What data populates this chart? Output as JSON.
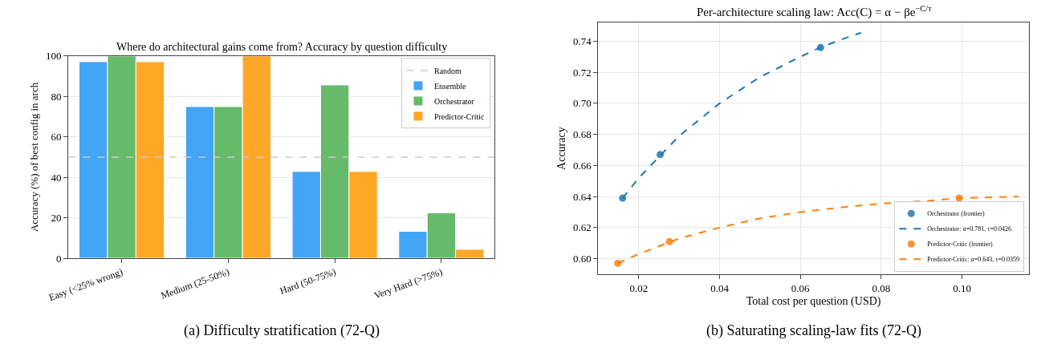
{
  "chart_data": [
    {
      "type": "bar",
      "title": "Where do architectural gains come from? Accuracy by question difficulty",
      "ylabel": "Accuracy (%) of best config in arch",
      "categories": [
        "Easy (<25% wrong)",
        "Medium (25-50%)",
        "Hard (50-75%)",
        "Very Hard (>75%)"
      ],
      "series": [
        {
          "name": "Ensemble",
          "color": "#42a5f5",
          "values": [
            97.2,
            75,
            42.9,
            13.3
          ]
        },
        {
          "name": "Orchestrator",
          "color": "#66bb6a",
          "values": [
            100,
            75,
            85.7,
            22.5
          ]
        },
        {
          "name": "Predictor-Critic",
          "color": "#ffa726",
          "values": [
            97.2,
            100,
            42.9,
            4.4
          ]
        }
      ],
      "ref_lines": [
        {
          "axis": "y",
          "value": 50,
          "label": "Random",
          "color": "#cccccc",
          "line_style": "dashed"
        }
      ],
      "ylim": [
        0,
        100
      ],
      "yticks": [
        0,
        20,
        40,
        60,
        80,
        100
      ],
      "grid": "y",
      "legend": "top right",
      "annotations": [
        "(a) Difficulty stratification (72-Q)"
      ]
    },
    {
      "type": "scatter",
      "title": "Per-architecture scaling law: Acc(C) = α − βe$^{−C/τ}$",
      "xlabel": "Total cost per question (USD)",
      "ylabel": "Accuracy",
      "series": [
        {
          "name": "Orchestrator (frontier)",
          "type": "scatter",
          "marker": "circle",
          "color": "#1f77b4",
          "x": [
            0.016,
            0.0253,
            0.065
          ],
          "values": [
            0.639,
            0.667,
            0.736
          ]
        },
        {
          "name": "Orchestrator: α=0.781, τ=0.0426",
          "type": "line",
          "marker": "none",
          "color": "#1f77b4",
          "line_style": "dashed",
          "x": [
            0.016,
            0.02,
            0.03,
            0.04,
            0.05,
            0.06,
            0.065,
            0.07,
            0.075
          ],
          "values": [
            0.639,
            0.652,
            0.679,
            0.7,
            0.717,
            0.73,
            0.736,
            0.741,
            0.7455
          ]
        },
        {
          "name": "Predictor-Critic (frontier)",
          "type": "scatter",
          "marker": "circle",
          "color": "#ff7f0e",
          "x": [
            0.0148,
            0.0276,
            0.0993
          ],
          "values": [
            0.597,
            0.611,
            0.639
          ]
        },
        {
          "name": "Predictor-Critic: α=0.643, τ=0.0359",
          "type": "line",
          "marker": "none",
          "color": "#ff7f0e",
          "line_style": "dashed",
          "x": [
            0.0148,
            0.02,
            0.03,
            0.04,
            0.05,
            0.06,
            0.07,
            0.08,
            0.09,
            0.1,
            0.114
          ],
          "values": [
            0.597,
            0.603,
            0.613,
            0.62,
            0.626,
            0.63,
            0.633,
            0.6355,
            0.637,
            0.639,
            0.64
          ]
        }
      ],
      "xlim": [
        0.01,
        0.1165
      ],
      "xticks": [
        0.02,
        0.04,
        0.06,
        0.08,
        {
          "value": 0.1,
          "label": "0.10"
        }
      ],
      "ylim": [
        0.59,
        0.752
      ],
      "yticks": [
        {
          "value": 0.6,
          "label": "0.60"
        },
        0.62,
        0.64,
        0.66,
        0.68,
        {
          "value": 0.7,
          "label": "0.70"
        },
        0.72,
        0.74
      ],
      "grid": true,
      "legend": "bottom right",
      "annotations": [
        "(b) Saturating scaling-law fits (72-Q)"
      ]
    }
  ]
}
